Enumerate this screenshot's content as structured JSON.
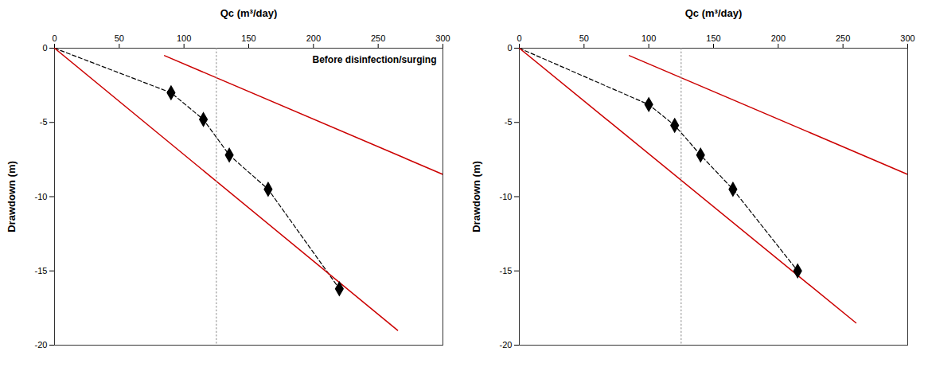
{
  "chart_data": [
    {
      "type": "line",
      "xlabel": "Qc (m³/day)",
      "ylabel": "Drawdown (m)",
      "annotation": "Before disinfection/surging",
      "xlim": [
        0,
        300
      ],
      "ylim": [
        -20,
        0
      ],
      "xticks": [
        0,
        50,
        100,
        150,
        200,
        250,
        300
      ],
      "yticks": [
        0,
        -5,
        -10,
        -15,
        -20
      ],
      "grid": false,
      "series": [
        {
          "type": "line",
          "x": [
            0,
            90,
            115,
            135,
            165,
            220
          ],
          "values": [
            0,
            -3.0,
            -4.8,
            -7.2,
            -9.5,
            -16.2
          ],
          "color": "#000000",
          "line_style": "dashed"
        },
        {
          "type": "line",
          "x": [
            0,
            265
          ],
          "values": [
            0,
            -19.0
          ],
          "color": "#cc0000",
          "line_style": "solid"
        },
        {
          "type": "line",
          "x": [
            85,
            300
          ],
          "values": [
            -0.5,
            -8.5
          ],
          "color": "#cc0000",
          "line_style": "solid"
        },
        {
          "type": "line",
          "x": [
            125,
            125
          ],
          "values": [
            0,
            -20
          ],
          "color": "#999999",
          "line_style": "dotted"
        },
        {
          "type": "scatter",
          "x": [
            90,
            115,
            135,
            165,
            220
          ],
          "values": [
            -3.0,
            -4.8,
            -7.2,
            -9.5,
            -16.2
          ],
          "color": "#000000",
          "marker": "diamond"
        }
      ]
    },
    {
      "type": "line",
      "xlabel": "Qc (m³/day)",
      "ylabel": "Drawdown (m)",
      "xlim": [
        0,
        300
      ],
      "ylim": [
        -20,
        0
      ],
      "xticks": [
        0,
        50,
        100,
        150,
        200,
        250,
        300
      ],
      "yticks": [
        0,
        -5,
        -10,
        -15,
        -20
      ],
      "grid": false,
      "series": [
        {
          "type": "line",
          "x": [
            0,
            100,
            120,
            140,
            165,
            215
          ],
          "values": [
            0,
            -3.8,
            -5.2,
            -7.2,
            -9.5,
            -15.0
          ],
          "color": "#000000",
          "line_style": "dashed"
        },
        {
          "type": "line",
          "x": [
            0,
            260
          ],
          "values": [
            0,
            -18.5
          ],
          "color": "#cc0000",
          "line_style": "solid"
        },
        {
          "type": "line",
          "x": [
            85,
            300
          ],
          "values": [
            -0.5,
            -8.5
          ],
          "color": "#cc0000",
          "line_style": "solid"
        },
        {
          "type": "line",
          "x": [
            125,
            125
          ],
          "values": [
            0,
            -20
          ],
          "color": "#999999",
          "line_style": "dotted"
        },
        {
          "type": "scatter",
          "x": [
            100,
            120,
            140,
            165,
            215
          ],
          "values": [
            -3.8,
            -5.2,
            -7.2,
            -9.5,
            -15.0
          ],
          "color": "#000000",
          "marker": "diamond"
        }
      ]
    }
  ]
}
